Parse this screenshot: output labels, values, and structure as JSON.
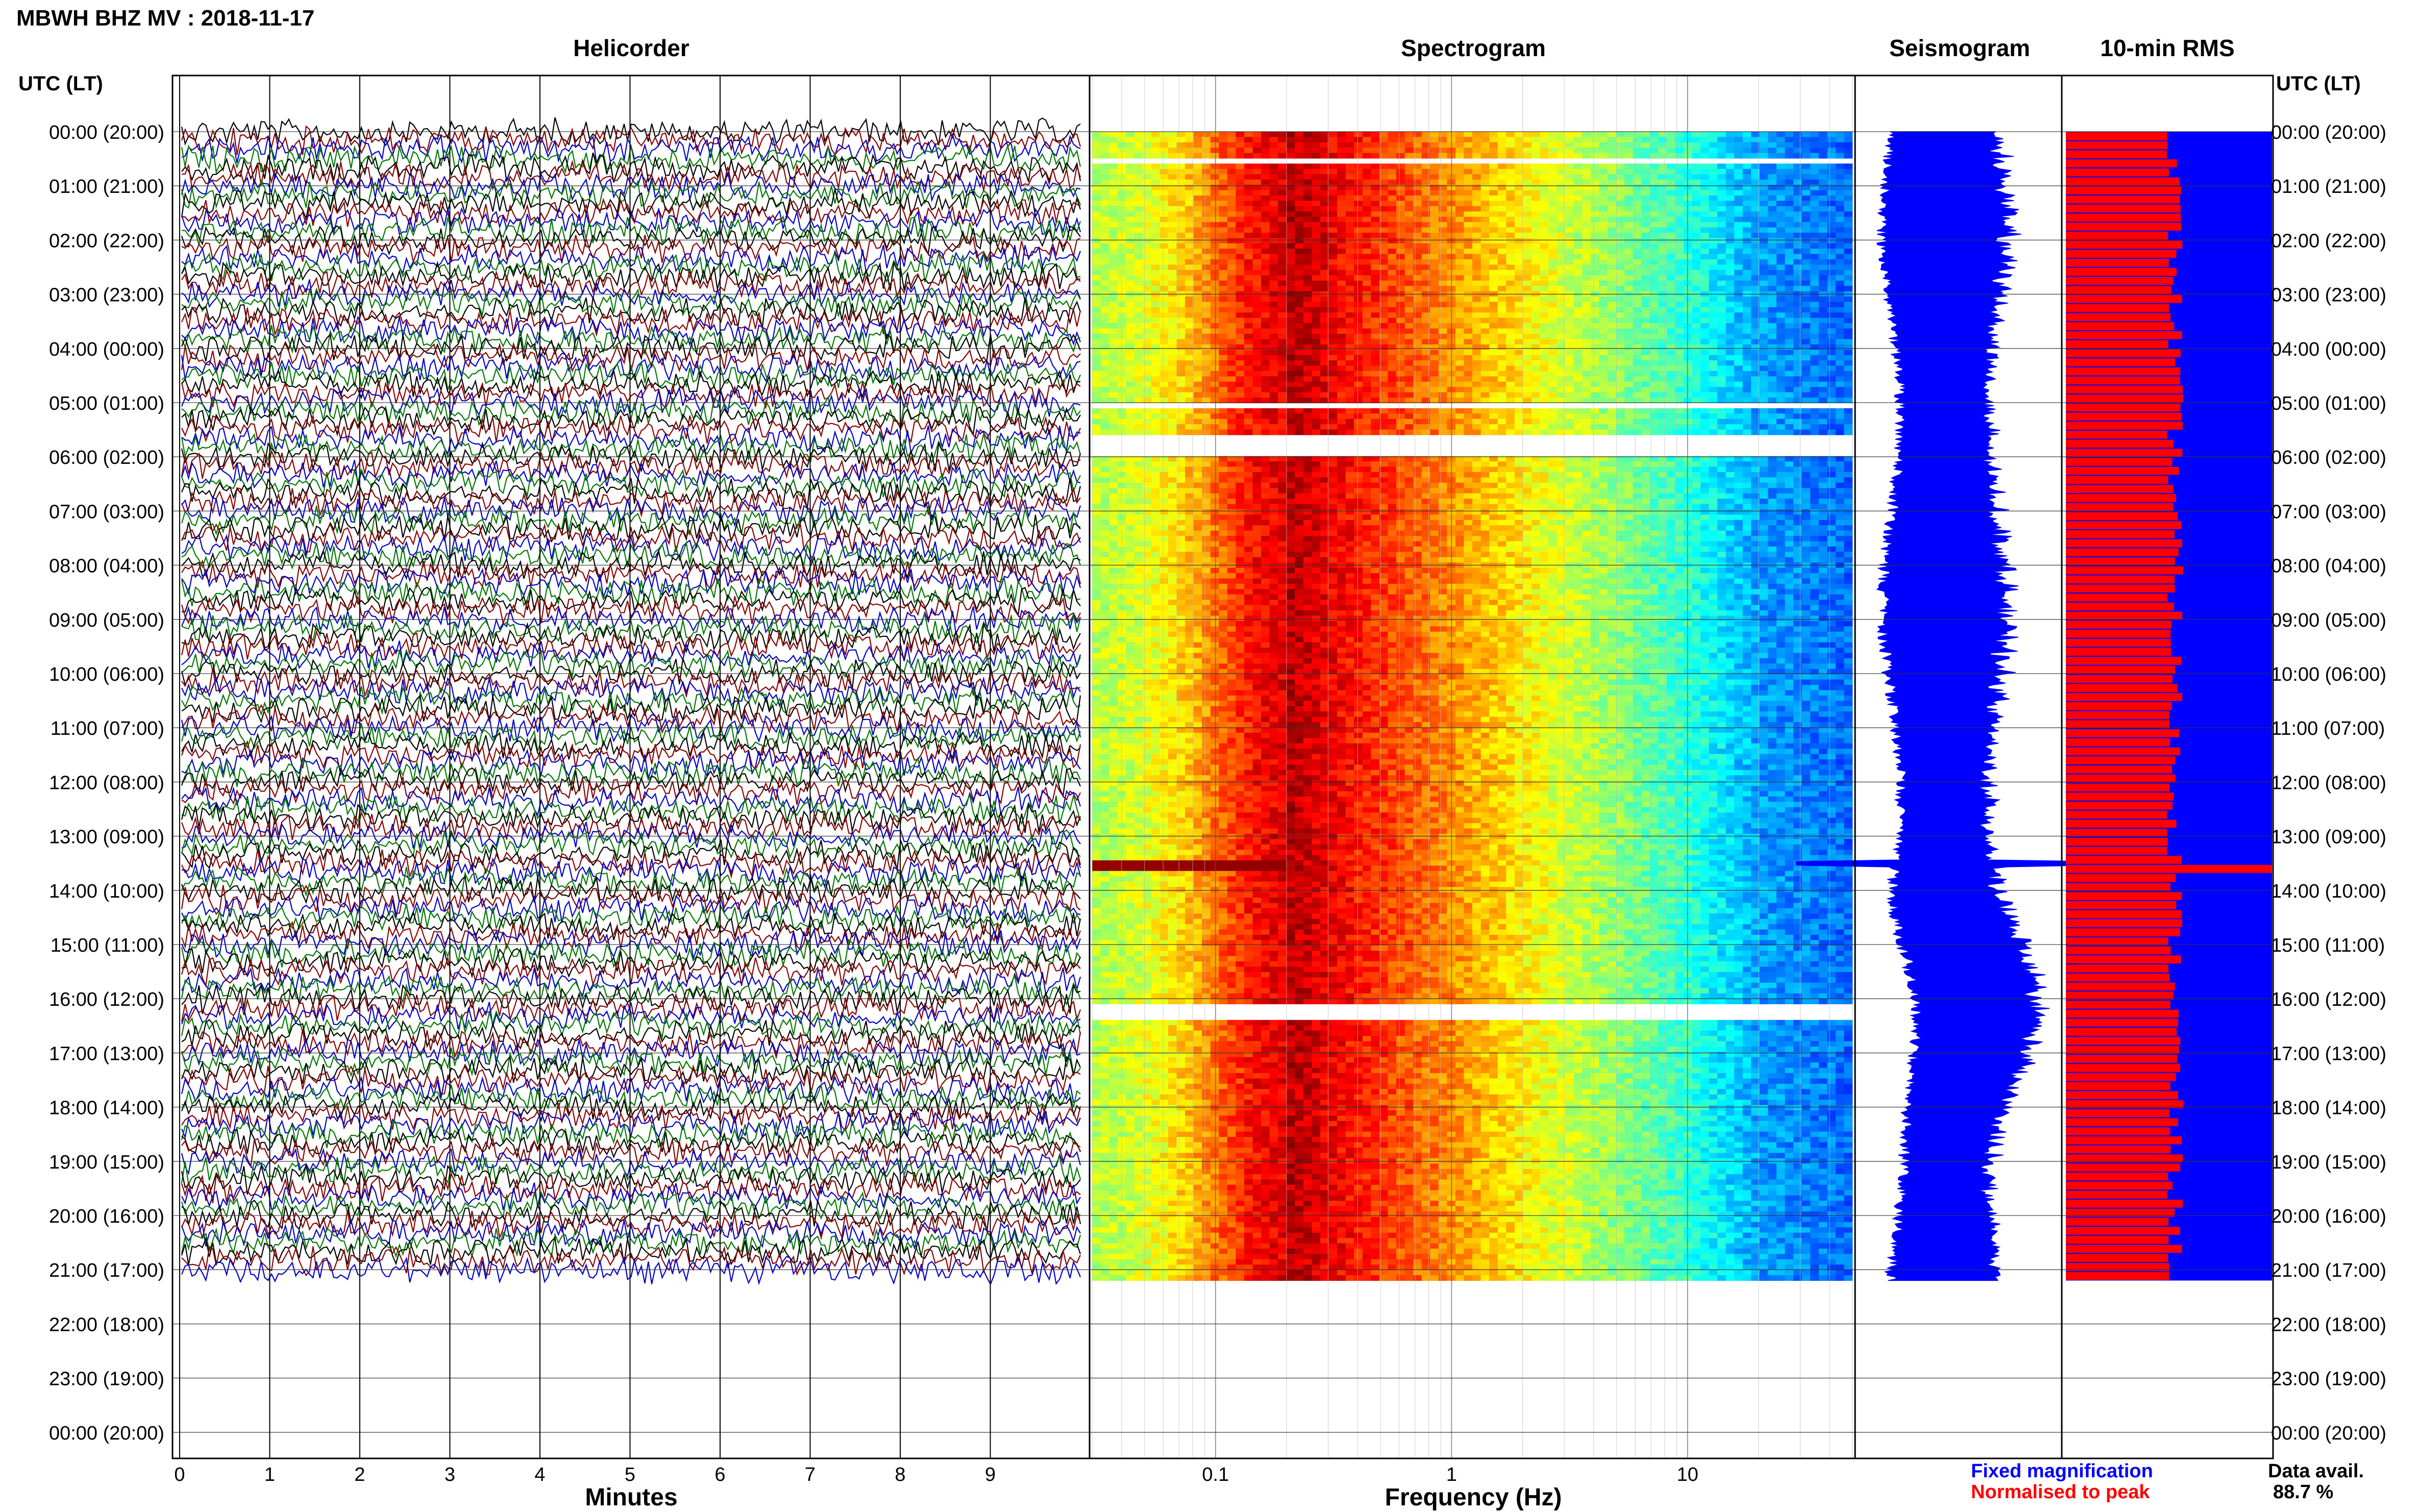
{
  "header": {
    "title": "MBWH BHZ MV : 2018-11-17",
    "time_axis_label": "UTC (LT)"
  },
  "panels": {
    "helicorder": {
      "title": "Helicorder",
      "xlabel": "Minutes"
    },
    "spectrogram": {
      "title": "Spectrogram",
      "xlabel": "Frequency (Hz)"
    },
    "seismogram": {
      "title": "Seismogram"
    },
    "rms": {
      "title": "10-min RMS"
    }
  },
  "legend": {
    "fixed_label": "Fixed magnification",
    "normalised_label": "Normalised to peak",
    "fixed_color": "#0000ff",
    "normalised_color": "#ff0000"
  },
  "data_availability": {
    "label": "Data avail.",
    "value": "88.7 %"
  },
  "chart_data": [
    {
      "type": "line",
      "panel": "helicorder",
      "title": "Helicorder",
      "xlabel": "Minutes",
      "x_ticks": [
        "0",
        "1",
        "2",
        "3",
        "4",
        "5",
        "6",
        "7",
        "8",
        "9"
      ],
      "xlim": [
        0,
        10
      ],
      "row_labels": [
        "00:00 (20:00)",
        "01:00 (21:00)",
        "02:00 (22:00)",
        "03:00 (23:00)",
        "04:00 (00:00)",
        "05:00 (01:00)",
        "06:00 (02:00)",
        "07:00 (03:00)",
        "08:00 (04:00)",
        "09:00 (05:00)",
        "10:00 (06:00)",
        "11:00 (07:00)",
        "12:00 (08:00)",
        "13:00 (09:00)",
        "14:00 (10:00)",
        "15:00 (11:00)",
        "16:00 (12:00)",
        "17:00 (13:00)",
        "18:00 (14:00)",
        "19:00 (15:00)",
        "20:00 (16:00)",
        "21:00 (17:00)",
        "22:00 (18:00)",
        "23:00 (19:00)",
        "00:00 (20:00)"
      ],
      "trace_colors": [
        "#000000",
        "#8b0000",
        "#0000cc",
        "#007a00"
      ],
      "trace_minutes": 10,
      "data_end_hour": 21.2
    },
    {
      "type": "heatmap",
      "panel": "spectrogram",
      "title": "Spectrogram",
      "xlabel": "Frequency (Hz)",
      "x_scale": "log",
      "xlim": [
        0.03,
        50
      ],
      "x_ticks": [
        "0.1",
        "1",
        "10"
      ],
      "colormap": "jet",
      "peak_frequency_hz": 0.2,
      "event_hour": 13.5,
      "gap_hours": [
        [
          0.4,
          0.5
        ],
        [
          4.95,
          5.1
        ],
        [
          5.55,
          5.95
        ],
        [
          16.05,
          16.3
        ]
      ],
      "data_end_hour": 21.2
    },
    {
      "type": "line",
      "panel": "seismogram",
      "title": "Seismogram",
      "color": "#0000ff",
      "event_hour": 13.5,
      "data_end_hour": 21.2
    },
    {
      "type": "bar",
      "panel": "rms",
      "title": "10-min RMS",
      "series": [
        {
          "name": "Fixed magnification",
          "color": "#0000ff",
          "level": 1.0
        },
        {
          "name": "Normalised to peak",
          "color": "#ff0000",
          "typical_level": 0.53,
          "peak_hour": 13.5
        }
      ],
      "interval_minutes": 10,
      "data_end_hour": 21.2
    }
  ]
}
